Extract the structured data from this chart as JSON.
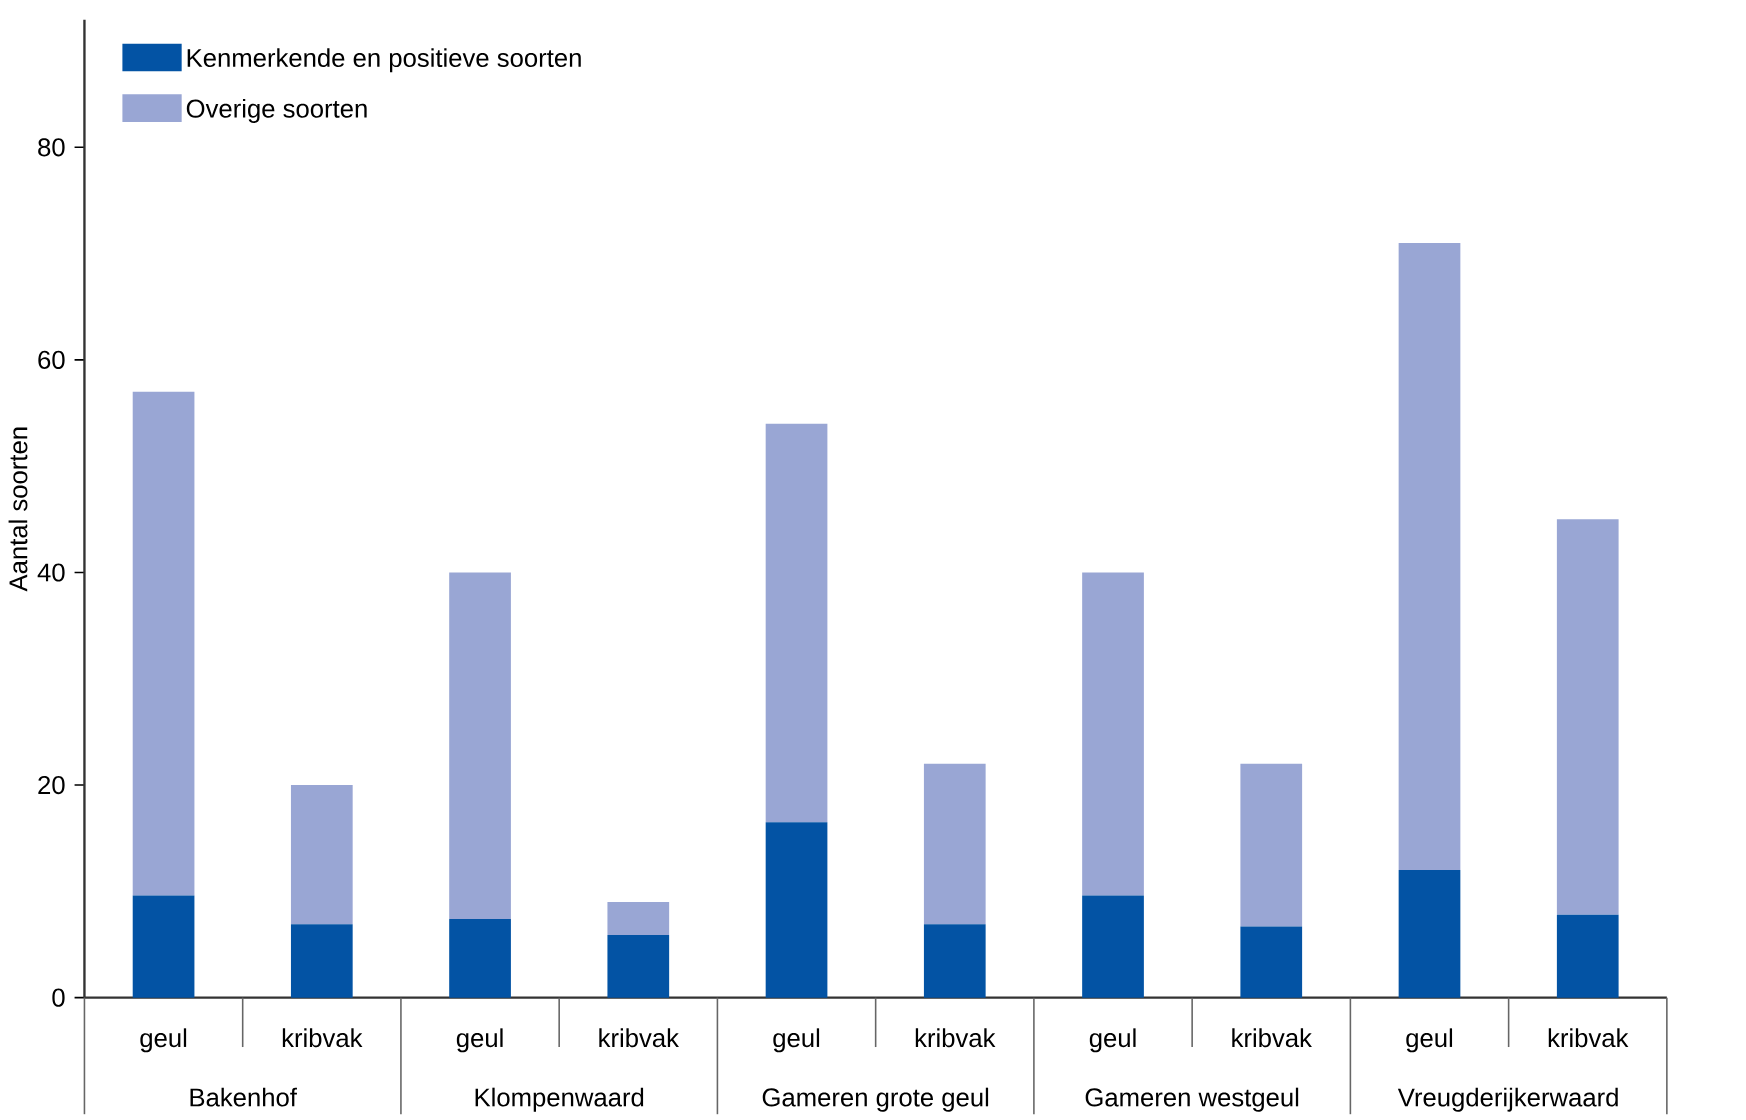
{
  "chart_data": {
    "type": "bar",
    "stacked": true,
    "ylabel": "Aantal soorten",
    "categories": [
      "geul",
      "kribvak",
      "geul",
      "kribvak",
      "geul",
      "kribvak",
      "geul",
      "kribvak",
      "geul",
      "kribvak"
    ],
    "annotations": [
      "Bakenhof",
      "Klompenwaard",
      "Gameren grote geul",
      "Gameren westgeul",
      "Vreugderijkerwaard"
    ],
    "series": [
      {
        "name": "Kenmerkende en positieve soorten",
        "color": "#0353a4",
        "values": [
          9.6,
          6.9,
          7.4,
          5.9,
          16.5,
          6.9,
          9.6,
          6.7,
          12,
          7.8
        ]
      },
      {
        "name": "Overige soorten",
        "color": "#99a6d4",
        "values": [
          47.4,
          13.1,
          32.6,
          3.1,
          37.5,
          15.1,
          30.4,
          15.3,
          59,
          37.2
        ]
      }
    ],
    "ylim": [
      0,
      92
    ],
    "yticks": [
      0,
      20,
      40,
      60,
      80
    ],
    "legend": "top left"
  }
}
